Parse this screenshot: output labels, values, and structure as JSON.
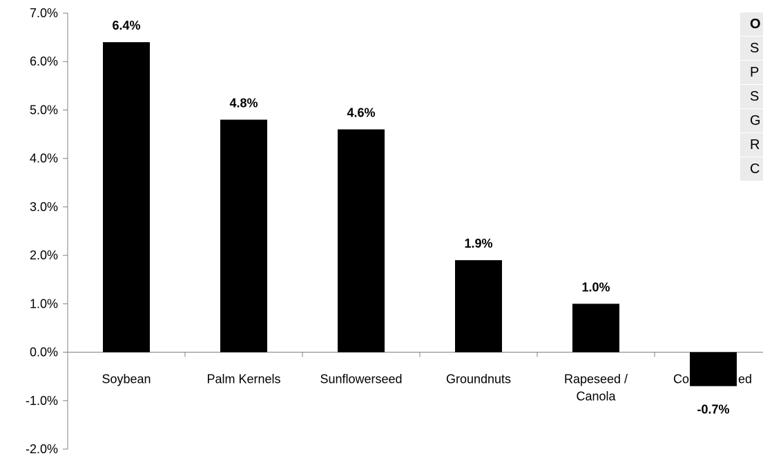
{
  "chart_data": {
    "type": "bar",
    "categories": [
      "Soybean",
      "Palm Kernels",
      "Sunflowerseed",
      "Groundnuts",
      "Rapeseed / Canola",
      "Cottonseed"
    ],
    "category_label_lines": [
      [
        "Soybean"
      ],
      [
        "Palm Kernels"
      ],
      [
        "Sunflowerseed"
      ],
      [
        "Groundnuts"
      ],
      [
        "Rapeseed /",
        "Canola"
      ],
      [
        "Co",
        "ed"
      ]
    ],
    "values": [
      6.4,
      4.8,
      4.6,
      1.9,
      1.0,
      -0.7
    ],
    "data_labels": [
      "6.4%",
      "4.8%",
      "4.6%",
      "1.9%",
      "1.0%",
      "-0.7%"
    ],
    "yticks": [
      7.0,
      6.0,
      5.0,
      4.0,
      3.0,
      2.0,
      1.0,
      0.0,
      -1.0,
      -2.0
    ],
    "ytick_labels": [
      "7.0%",
      "6.0%",
      "5.0%",
      "4.0%",
      "3.0%",
      "2.0%",
      "1.0%",
      "0.0%",
      "-1.0%",
      "-2.0%"
    ],
    "ylim": [
      -2.0,
      7.0
    ],
    "bar_color": "#000000",
    "grid": false,
    "legend": false,
    "title": "",
    "xlabel": "",
    "ylabel": ""
  },
  "side_table": {
    "header": "O",
    "rows": [
      "S",
      "P",
      "S",
      "G",
      "R",
      "C"
    ]
  }
}
